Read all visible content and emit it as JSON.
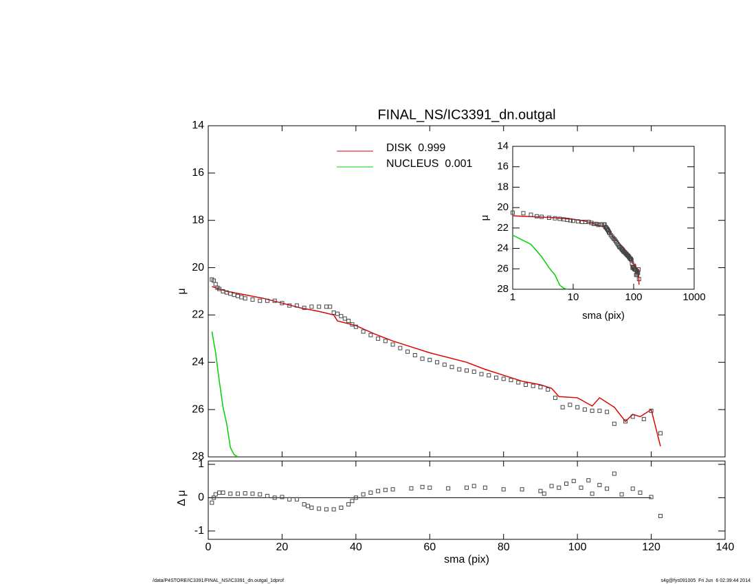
{
  "chart_data": [
    {
      "type": "profile",
      "title": "FINAL_NS/IC3391_dn.outgal",
      "ylabel": "μ",
      "xlim": [
        0,
        140
      ],
      "xticks": [
        0,
        20,
        40,
        60,
        80,
        100,
        120,
        140
      ],
      "ylim": [
        14,
        28
      ],
      "yreverse": true,
      "yticks": [
        14,
        16,
        18,
        20,
        22,
        24,
        26,
        28
      ],
      "marker": "square",
      "marker_color": "#444",
      "x": [
        1,
        1.5,
        2,
        2.5,
        3,
        4,
        5,
        6,
        7,
        8,
        9,
        10,
        12,
        14,
        16,
        18,
        20,
        22,
        24,
        26,
        28,
        30,
        32,
        33,
        34,
        35,
        36,
        37,
        38,
        39,
        40,
        42,
        44,
        46,
        48,
        50,
        52,
        54,
        56,
        58,
        60,
        62,
        64,
        66,
        68,
        70,
        72,
        74,
        76,
        78,
        80,
        82,
        84,
        86,
        88,
        90,
        92,
        94,
        96,
        98,
        100,
        102,
        104,
        106,
        108,
        110,
        113,
        115,
        118,
        120,
        122.5
      ],
      "values": [
        20.5,
        20.55,
        20.7,
        20.85,
        20.9,
        21.0,
        21.05,
        21.1,
        21.15,
        21.2,
        21.25,
        21.3,
        21.35,
        21.4,
        21.4,
        21.4,
        21.5,
        21.6,
        21.6,
        21.7,
        21.65,
        21.65,
        21.65,
        21.65,
        21.9,
        21.95,
        22.05,
        22.15,
        22.25,
        22.4,
        22.5,
        22.7,
        22.85,
        23.0,
        23.1,
        23.25,
        23.4,
        23.55,
        23.7,
        23.85,
        23.9,
        24.0,
        24.1,
        24.2,
        24.3,
        24.35,
        24.4,
        24.5,
        24.55,
        24.65,
        24.7,
        24.75,
        24.85,
        24.95,
        25.0,
        25.05,
        25.15,
        25.5,
        25.9,
        25.8,
        25.9,
        26.0,
        26.05,
        26.05,
        26.1,
        26.6,
        26.5,
        26.3,
        26.4,
        26.05,
        27.0
      ],
      "series": [
        {
          "name": "DISK  0.999",
          "color": "#e00000",
          "x": [
            1,
            5,
            10,
            15,
            20,
            25,
            30,
            34,
            35,
            40,
            45,
            50,
            55,
            60,
            65,
            70,
            75,
            80,
            85,
            90,
            93,
            95,
            100,
            104,
            106,
            110,
            113,
            115,
            117,
            120,
            122.5
          ],
          "values": [
            20.8,
            21.0,
            21.15,
            21.3,
            21.5,
            21.7,
            21.85,
            22.0,
            22.25,
            22.45,
            22.8,
            23.1,
            23.35,
            23.6,
            23.8,
            24.0,
            24.3,
            24.55,
            24.8,
            24.95,
            25.1,
            25.45,
            25.5,
            25.85,
            25.5,
            25.9,
            26.5,
            26.2,
            26.3,
            26.0,
            27.55
          ]
        },
        {
          "name": "NUCLEUS  0.001",
          "color": "#00d000",
          "x": [
            1,
            2,
            3,
            4,
            5,
            6,
            7,
            8
          ],
          "values": [
            22.7,
            23.6,
            24.8,
            25.9,
            26.6,
            27.6,
            27.9,
            28.0
          ]
        }
      ]
    },
    {
      "type": "scatter",
      "xlabel": "sma (pix)",
      "ylabel": "Δ μ",
      "xlim": [
        0,
        140
      ],
      "xticks": [
        0,
        20,
        40,
        60,
        80,
        100,
        120,
        140
      ],
      "ylim": [
        -1.25,
        1.1
      ],
      "yticks": [
        -1,
        0,
        1
      ],
      "marker_color": "#444",
      "x": [
        1,
        1.5,
        2,
        3,
        4,
        6,
        8,
        10,
        12,
        14,
        16,
        18,
        20,
        22,
        24,
        26,
        27,
        28,
        30,
        32,
        34,
        36,
        38,
        39,
        40,
        42,
        44,
        46,
        48,
        50,
        55,
        58,
        60,
        65,
        70,
        72,
        75,
        80,
        85,
        90,
        91,
        93,
        95,
        97,
        99,
        101,
        103,
        104,
        106,
        108,
        110,
        112,
        115,
        117,
        120,
        122.5
      ],
      "values": [
        -0.15,
        0.0,
        0.1,
        0.15,
        0.15,
        0.12,
        0.12,
        0.13,
        0.12,
        0.1,
        0.05,
        0.0,
        0.02,
        -0.05,
        -0.05,
        -0.2,
        -0.25,
        -0.3,
        -0.33,
        -0.35,
        -0.35,
        -0.3,
        -0.2,
        -0.1,
        0.0,
        0.1,
        0.15,
        0.2,
        0.23,
        0.25,
        0.28,
        0.32,
        0.3,
        0.28,
        0.3,
        0.35,
        0.3,
        0.25,
        0.25,
        0.2,
        0.12,
        0.35,
        0.3,
        0.42,
        0.5,
        0.3,
        0.52,
        0.12,
        0.38,
        0.27,
        0.72,
        0.1,
        0.27,
        0.15,
        0.02,
        -0.55
      ]
    },
    {
      "type": "inset",
      "xlabel": "sma (pix)",
      "ylabel": "μ",
      "xlog": true,
      "xlim": [
        1,
        1000
      ],
      "xticks": [
        1,
        10,
        100,
        1000
      ],
      "ylim": [
        14,
        28
      ],
      "yreverse": true,
      "yticks": [
        14,
        16,
        18,
        20,
        22,
        24,
        26,
        28
      ]
    }
  ],
  "footer": {
    "left": "/data/P4STORE/IC3391/FINAL_NS/IC3391_dn.outgal_1dprof",
    "right": "s4g@fys091005  Fri Jun  6 02:39:44 2014"
  }
}
